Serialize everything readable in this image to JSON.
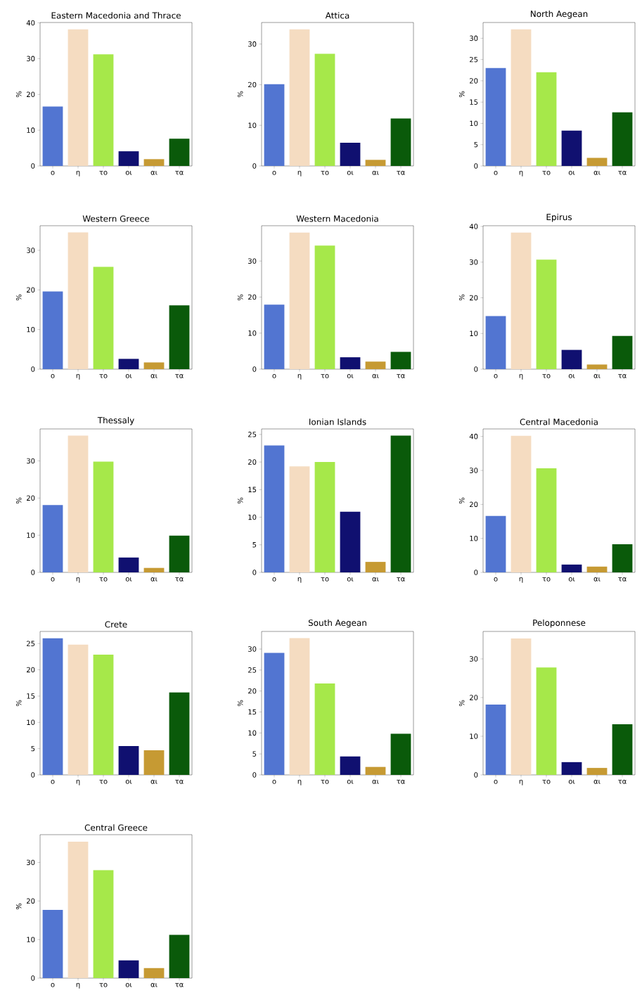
{
  "chart_data": [
    {
      "type": "bar",
      "title": "Eastern Macedonia and Thrace",
      "ylabel": "%",
      "categories": [
        "ο",
        "η",
        "το",
        "οι",
        "αι",
        "τα"
      ],
      "colors": [
        "#5275d1",
        "#f5dcc1",
        "#a6e84a",
        "#101070",
        "#c69a33",
        "#0a5a0a"
      ],
      "values": [
        16.6,
        38.2,
        31.2,
        4.1,
        1.9,
        7.6
      ],
      "ylim": [
        0,
        40.1
      ],
      "yticks": [
        0,
        10,
        20,
        30,
        40
      ]
    },
    {
      "type": "bar",
      "title": "Attica",
      "ylabel": "%",
      "categories": [
        "ο",
        "η",
        "το",
        "οι",
        "αι",
        "τα"
      ],
      "colors": [
        "#5275d1",
        "#f5dcc1",
        "#a6e84a",
        "#101070",
        "#c69a33",
        "#0a5a0a"
      ],
      "values": [
        20.1,
        33.6,
        27.6,
        5.7,
        1.5,
        11.7
      ],
      "ylim": [
        0,
        35.3
      ],
      "yticks": [
        0,
        10,
        20,
        30
      ]
    },
    {
      "type": "bar",
      "title": "North Aegean",
      "ylabel": "%",
      "categories": [
        "ο",
        "η",
        "το",
        "οι",
        "αι",
        "τα"
      ],
      "colors": [
        "#5275d1",
        "#f5dcc1",
        "#a6e84a",
        "#101070",
        "#c69a33",
        "#0a5a0a"
      ],
      "values": [
        23.0,
        32.1,
        22.0,
        8.3,
        1.9,
        12.6
      ],
      "ylim": [
        0,
        33.7
      ],
      "yticks": [
        0,
        5,
        10,
        15,
        20,
        25,
        30
      ]
    },
    {
      "type": "bar",
      "title": "Western Greece",
      "ylabel": "%",
      "categories": [
        "ο",
        "η",
        "το",
        "οι",
        "αι",
        "τα"
      ],
      "colors": [
        "#5275d1",
        "#f5dcc1",
        "#a6e84a",
        "#101070",
        "#c69a33",
        "#0a5a0a"
      ],
      "values": [
        19.6,
        34.5,
        25.8,
        2.6,
        1.7,
        16.1
      ],
      "ylim": [
        0,
        36.2
      ],
      "yticks": [
        0,
        10,
        20,
        30
      ]
    },
    {
      "type": "bar",
      "title": "Western Macedonia",
      "ylabel": "%",
      "categories": [
        "ο",
        "η",
        "το",
        "οι",
        "αι",
        "τα"
      ],
      "colors": [
        "#5275d1",
        "#f5dcc1",
        "#a6e84a",
        "#101070",
        "#c69a33",
        "#0a5a0a"
      ],
      "values": [
        17.9,
        37.9,
        34.3,
        3.3,
        2.1,
        4.8
      ],
      "ylim": [
        0,
        39.8
      ],
      "yticks": [
        0,
        10,
        20,
        30
      ]
    },
    {
      "type": "bar",
      "title": "Epirus",
      "ylabel": "%",
      "categories": [
        "ο",
        "η",
        "το",
        "οι",
        "αι",
        "τα"
      ],
      "colors": [
        "#5275d1",
        "#f5dcc1",
        "#a6e84a",
        "#101070",
        "#c69a33",
        "#0a5a0a"
      ],
      "values": [
        14.9,
        38.3,
        30.7,
        5.4,
        1.3,
        9.3
      ],
      "ylim": [
        0,
        40.2
      ],
      "yticks": [
        0,
        10,
        20,
        30,
        40
      ]
    },
    {
      "type": "bar",
      "title": "Thessaly",
      "ylabel": "%",
      "categories": [
        "ο",
        "η",
        "το",
        "οι",
        "αι",
        "τα"
      ],
      "colors": [
        "#5275d1",
        "#f5dcc1",
        "#a6e84a",
        "#101070",
        "#c69a33",
        "#0a5a0a"
      ],
      "values": [
        18.1,
        36.8,
        29.8,
        4.0,
        1.2,
        9.9
      ],
      "ylim": [
        0,
        38.6
      ],
      "yticks": [
        0,
        10,
        20,
        30
      ]
    },
    {
      "type": "bar",
      "title": "Ionian Islands",
      "ylabel": "%",
      "categories": [
        "ο",
        "η",
        "το",
        "οι",
        "αι",
        "τα"
      ],
      "colors": [
        "#5275d1",
        "#f5dcc1",
        "#a6e84a",
        "#101070",
        "#c69a33",
        "#0a5a0a"
      ],
      "values": [
        23.0,
        19.2,
        20.0,
        11.0,
        1.9,
        24.8
      ],
      "ylim": [
        0,
        26.0
      ],
      "yticks": [
        0,
        5,
        10,
        15,
        20,
        25
      ]
    },
    {
      "type": "bar",
      "title": "Central Macedonia",
      "ylabel": "%",
      "categories": [
        "ο",
        "η",
        "το",
        "οι",
        "αι",
        "τα"
      ],
      "colors": [
        "#5275d1",
        "#f5dcc1",
        "#a6e84a",
        "#101070",
        "#c69a33",
        "#0a5a0a"
      ],
      "values": [
        16.6,
        40.2,
        30.6,
        2.3,
        1.7,
        8.3
      ],
      "ylim": [
        0,
        42.2
      ],
      "yticks": [
        0,
        10,
        20,
        30,
        40
      ]
    },
    {
      "type": "bar",
      "title": "Crete",
      "ylabel": "%",
      "categories": [
        "ο",
        "η",
        "το",
        "οι",
        "αι",
        "τα"
      ],
      "colors": [
        "#5275d1",
        "#f5dcc1",
        "#a6e84a",
        "#101070",
        "#c69a33",
        "#0a5a0a"
      ],
      "values": [
        26.0,
        24.8,
        22.9,
        5.5,
        4.7,
        15.7
      ],
      "ylim": [
        0,
        27.3
      ],
      "yticks": [
        0,
        5,
        10,
        15,
        20,
        25
      ]
    },
    {
      "type": "bar",
      "title": "South Aegean",
      "ylabel": "%",
      "categories": [
        "ο",
        "η",
        "το",
        "οι",
        "αι",
        "τα"
      ],
      "colors": [
        "#5275d1",
        "#f5dcc1",
        "#a6e84a",
        "#101070",
        "#c69a33",
        "#0a5a0a"
      ],
      "values": [
        29.1,
        32.6,
        21.8,
        4.4,
        1.9,
        9.8
      ],
      "ylim": [
        0,
        34.2
      ],
      "yticks": [
        0,
        5,
        10,
        15,
        20,
        25,
        30
      ]
    },
    {
      "type": "bar",
      "title": "Peloponnese",
      "ylabel": "%",
      "categories": [
        "ο",
        "η",
        "το",
        "οι",
        "αι",
        "τα"
      ],
      "colors": [
        "#5275d1",
        "#f5dcc1",
        "#a6e84a",
        "#101070",
        "#c69a33",
        "#0a5a0a"
      ],
      "values": [
        18.2,
        35.3,
        27.8,
        3.3,
        1.8,
        13.1
      ],
      "ylim": [
        0,
        37.1
      ],
      "yticks": [
        0,
        10,
        20,
        30
      ]
    },
    {
      "type": "bar",
      "title": "Central Greece",
      "ylabel": "%",
      "categories": [
        "ο",
        "η",
        "το",
        "οι",
        "αι",
        "τα"
      ],
      "colors": [
        "#5275d1",
        "#f5dcc1",
        "#a6e84a",
        "#101070",
        "#c69a33",
        "#0a5a0a"
      ],
      "values": [
        17.7,
        35.4,
        28.0,
        4.6,
        2.6,
        11.2
      ],
      "ylim": [
        0,
        37.2
      ],
      "yticks": [
        0,
        10,
        20,
        30
      ]
    }
  ]
}
